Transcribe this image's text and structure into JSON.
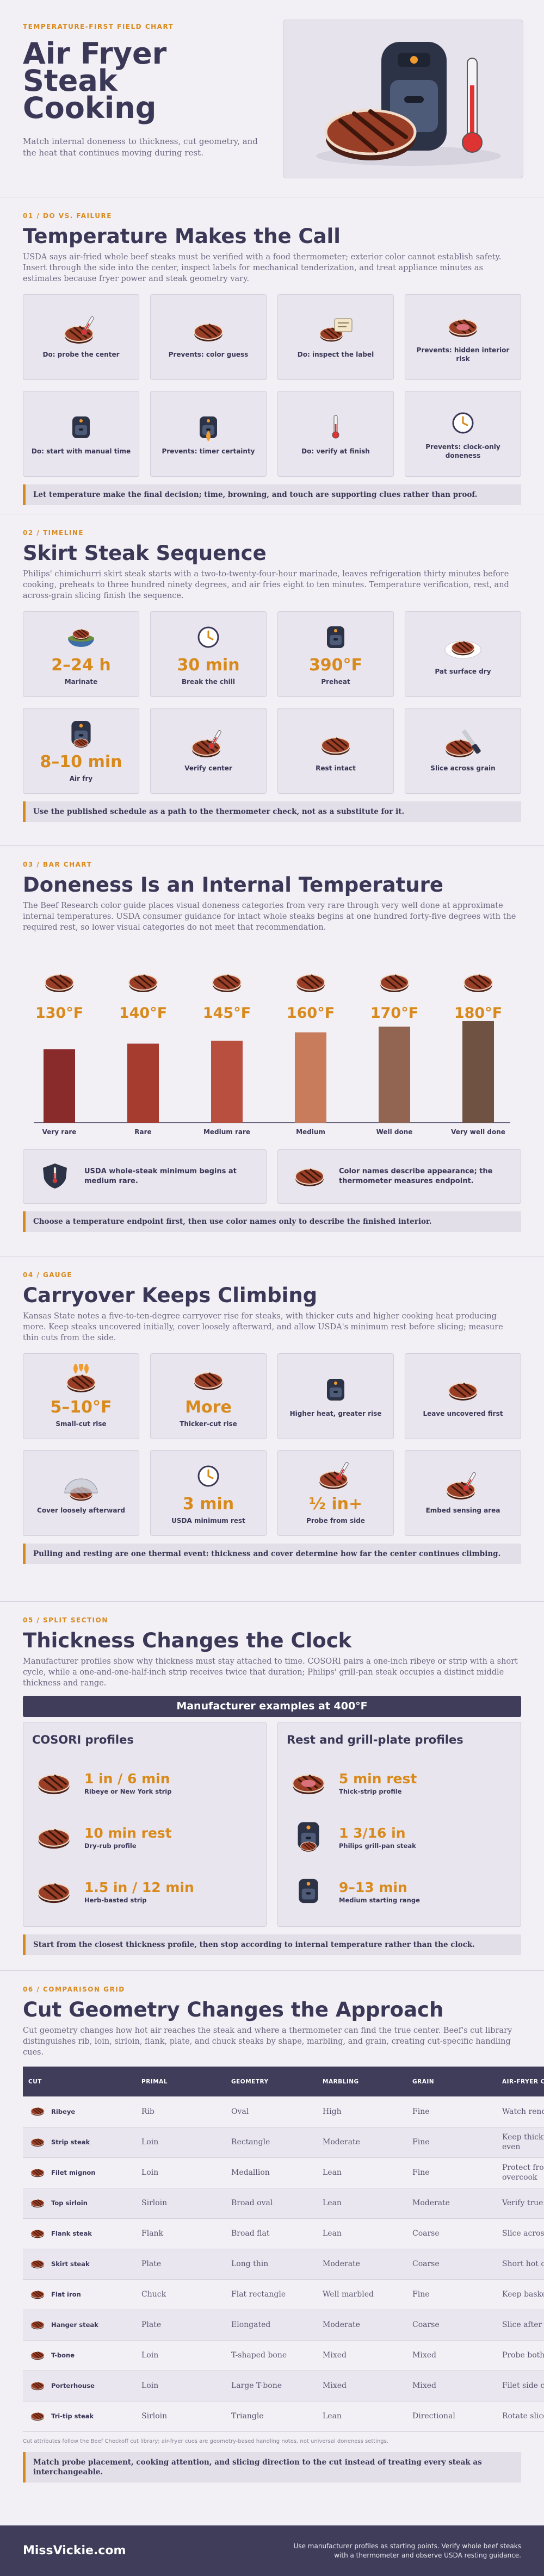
{
  "header": {
    "eyebrow": "TEMPERATURE-FIRST FIELD CHART",
    "title_lines": [
      "Air Fryer",
      "Steak",
      "Cooking"
    ],
    "subtitle": "Match internal doneness to thickness, cut geometry, and the heat that continues moving during rest."
  },
  "sections": [
    {
      "label": "01 / DO VS. FAILURE",
      "title": "Temperature Makes the Call",
      "text": "USDA says air-fried whole beef steaks must be verified with a food thermometer; exterior color cannot establish safety. Insert through the side into the center, inspect labels for mechanical tenderization, and treat appliance minutes as estimates because fryer power and steak geometry vary.",
      "cards": [
        {
          "label": "Do: probe the center"
        },
        {
          "label": "Prevents: color guess"
        },
        {
          "label": "Do: inspect the label"
        },
        {
          "label": "Prevents: hidden interior risk"
        },
        {
          "label": "Do: start with manual time"
        },
        {
          "label": "Prevents: timer certainty"
        },
        {
          "label": "Do: verify at finish"
        },
        {
          "label": "Prevents: clock-only doneness"
        }
      ],
      "callout": "Let temperature make the final decision; time, browning, and touch are supporting clues rather than proof."
    },
    {
      "label": "02 / TIMELINE",
      "title": "Skirt Steak Sequence",
      "text": "Philips' chimichurri skirt steak starts with a two-to-twenty-four-hour marinade, leaves refrigeration thirty minutes before cooking, preheats to three hundred ninety degrees, and air fries eight to ten minutes. Temperature verification, rest, and across-grain slicing finish the sequence.",
      "cards": [
        {
          "value": "2–24 h",
          "label": "Marinate"
        },
        {
          "value": "30 min",
          "label": "Break the chill"
        },
        {
          "value": "390°F",
          "label": "Preheat"
        },
        {
          "label": "Pat surface dry"
        },
        {
          "value": "8–10 min",
          "label": "Air fry"
        },
        {
          "label": "Verify center"
        },
        {
          "label": "Rest intact"
        },
        {
          "label": "Slice across grain"
        }
      ],
      "callout": "Use the published schedule as a path to the thermometer check, not as a substitute for it."
    },
    {
      "label": "03 / BAR CHART",
      "title": "Doneness Is an Internal Temperature",
      "text": "The Beef Research color guide places visual doneness categories from very rare through very well done at approximate internal temperatures. USDA consumer guidance for intact whole steaks begins at one hundred forty-five degrees with the required rest, so lower visual categories do not meet that recommendation.",
      "notes": [
        "USDA whole-steak minimum begins at medium rare.",
        "Color names describe appearance; the thermometer measures endpoint."
      ],
      "callout": "Choose a temperature endpoint first, then use color names only to describe the finished interior."
    },
    {
      "label": "04 / GAUGE",
      "title": "Carryover Keeps Climbing",
      "text": "Kansas State notes a five-to-ten-degree carryover rise for steaks, with thicker cuts and higher cooking heat producing more. Keep steaks uncovered initially, cover loosely afterward, and allow USDA's minimum rest before slicing; measure thin cuts from the side.",
      "cards": [
        {
          "value": "5–10°F",
          "label": "Small-cut rise"
        },
        {
          "value": "More",
          "label": "Thicker-cut rise"
        },
        {
          "label": "Higher heat, greater rise"
        },
        {
          "label": "Leave uncovered first"
        },
        {
          "label": "Cover loosely afterward"
        },
        {
          "value": "3 min",
          "label": "USDA minimum rest"
        },
        {
          "value": "½ in+",
          "label": "Probe from side"
        },
        {
          "label": "Embed sensing area"
        }
      ],
      "callout": "Pulling and resting are one thermal event: thickness and cover determine how far the center continues climbing."
    },
    {
      "label": "05 / SPLIT SECTION",
      "title": "Thickness Changes the Clock",
      "text": "Manufacturer profiles show why thickness must stay attached to time. COSORI pairs a one-inch ribeye or strip with a short cycle, while a one-and-one-half-inch strip receives twice that duration; Philips' grill-pan steak occupies a distinct middle thickness and range.",
      "banner": "Manufacturer examples at 400°F",
      "panels": [
        {
          "title": "COSORI profiles",
          "items": [
            {
              "value": "1 in / 6 min",
              "label": "Ribeye or New York strip"
            },
            {
              "value": "10 min rest",
              "label": "Dry-rub profile"
            },
            {
              "value": "1.5 in / 12 min",
              "label": "Herb-basted strip"
            }
          ]
        },
        {
          "title": "Rest and grill-plate profiles",
          "items": [
            {
              "value": "5 min rest",
              "label": "Thick-strip profile"
            },
            {
              "value": "1 3/16 in",
              "label": "Philips grill-pan steak"
            },
            {
              "value": "9–13 min",
              "label": "Medium starting range"
            }
          ]
        }
      ],
      "callout": "Start from the closest thickness profile, then stop according to internal temperature rather than the clock."
    },
    {
      "label": "06 / COMPARISON GRID",
      "title": "Cut Geometry Changes the Approach",
      "text": "Cut geometry changes how hot air reaches the steak and where a thermometer can find the true center. Beef's cut library distinguishes rib, loin, sirloin, flank, plate, and chuck steaks by shape, marbling, and grain, creating cut-specific handling cues.",
      "table": {
        "columns": [
          "CUT",
          "PRIMAL",
          "GEOMETRY",
          "MARBLING",
          "GRAIN",
          "AIR-FRYER CUE"
        ],
        "rows": [
          [
            "Ribeye",
            "Rib",
            "Oval",
            "High",
            "Fine",
            "Watch rendered fat"
          ],
          [
            "Strip steak",
            "Loin",
            "Rectangle",
            "Moderate",
            "Fine",
            "Keep thickness even"
          ],
          [
            "Filet mignon",
            "Loin",
            "Medallion",
            "Lean",
            "Fine",
            "Protect from overcook"
          ],
          [
            "Top sirloin",
            "Sirloin",
            "Broad oval",
            "Lean",
            "Moderate",
            "Verify true center"
          ],
          [
            "Flank steak",
            "Flank",
            "Broad flat",
            "Lean",
            "Coarse",
            "Slice across grain"
          ],
          [
            "Skirt steak",
            "Plate",
            "Long thin",
            "Moderate",
            "Coarse",
            "Short hot cycle"
          ],
          [
            "Flat iron",
            "Chuck",
            "Flat rectangle",
            "Well marbled",
            "Fine",
            "Keep basket level"
          ],
          [
            "Hanger steak",
            "Plate",
            "Elongated",
            "Moderate",
            "Coarse",
            "Slice after rest"
          ],
          [
            "T-bone",
            "Loin",
            "T-shaped bone",
            "Mixed",
            "Mixed",
            "Probe both sides"
          ],
          [
            "Porterhouse",
            "Loin",
            "Large T-bone",
            "Mixed",
            "Mixed",
            "Filet side cooks fast"
          ],
          [
            "Tri-tip steak",
            "Sirloin",
            "Triangle",
            "Lean",
            "Directional",
            "Rotate slice angle"
          ]
        ]
      },
      "footnote": "Cut attributes follow the Beef Checkoff cut library; air-fryer cues are geometry-based handling notes, not universal doneness settings.",
      "callout": "Match probe placement, cooking attention, and slicing direction to the cut instead of treating every steak as interchangeable."
    }
  ],
  "chart_data": {
    "type": "bar",
    "categories": [
      "Very rare",
      "Rare",
      "Medium rare",
      "Medium",
      "Well done",
      "Very well done"
    ],
    "values": [
      130,
      140,
      145,
      160,
      170,
      180
    ],
    "value_labels": [
      "130°F",
      "140°F",
      "145°F",
      "160°F",
      "170°F",
      "180°F"
    ],
    "colors": [
      "#8a2b2b",
      "#a63b30",
      "#b9503f",
      "#c97c5c",
      "#916552",
      "#6f5242"
    ],
    "ylim": [
      0,
      180
    ]
  },
  "footer": {
    "brand": "MissVickie.com",
    "note": "Use manufacturer profiles as starting points. Verify whole beef steaks with a thermometer and observe USDA resting guidance."
  }
}
